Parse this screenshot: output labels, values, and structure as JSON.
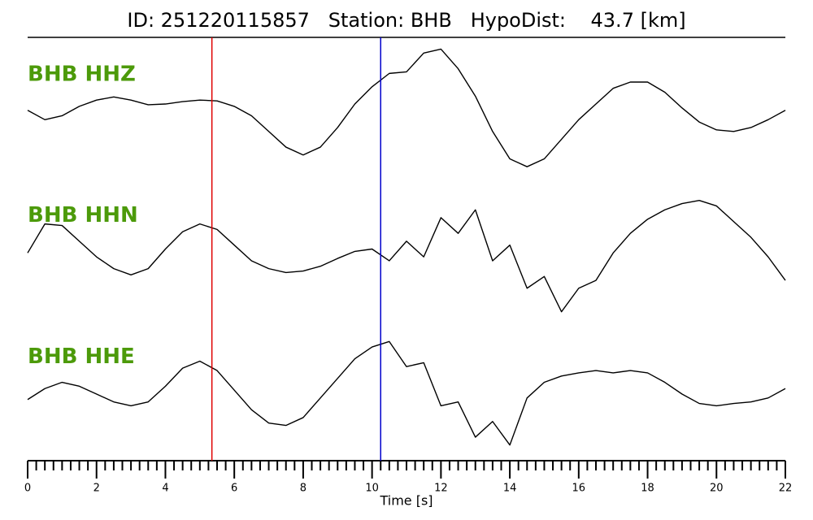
{
  "chart_data": {
    "type": "line",
    "title": "ID: 251220115857   Station: BHB   HypoDist:    43.7 [km]",
    "xlabel": "Time [s]",
    "xlim": [
      0,
      22
    ],
    "xticks": [
      0,
      2,
      4,
      6,
      8,
      10,
      12,
      14,
      16,
      18,
      20,
      22
    ],
    "xminorticks": [
      0.25,
      0.5,
      0.75,
      1,
      1.25,
      1.5,
      1.75,
      2.25,
      2.5,
      2.75,
      3,
      3.25,
      3.5,
      3.75,
      4.25,
      4.5,
      4.75,
      5,
      5.25,
      5.5,
      5.75,
      6.25,
      6.5,
      6.75,
      7,
      7.25,
      7.5,
      7.75,
      8.25,
      8.5,
      8.75,
      9,
      9.25,
      9.5,
      9.75,
      10.25,
      10.5,
      10.75,
      11,
      11.25,
      11.5,
      11.75,
      12.25,
      12.5,
      12.75,
      13,
      13.25,
      13.5,
      13.75,
      14.25,
      14.5,
      14.75,
      15,
      15.25,
      15.5,
      15.75,
      16.25,
      16.5,
      16.75,
      17,
      17.25,
      17.5,
      17.75,
      18.25,
      18.5,
      18.75,
      19,
      19.25,
      19.5,
      19.75,
      20.25,
      20.5,
      20.75,
      21,
      21.25,
      21.5,
      21.75
    ],
    "ylim": [
      -90,
      90
    ],
    "label_color": "#4c9a0a",
    "x": [
      0,
      0.5,
      1,
      1.5,
      2,
      2.5,
      3,
      3.5,
      4,
      4.5,
      5,
      5.5,
      6,
      6.5,
      7,
      7.5,
      8,
      8.5,
      9,
      9.5,
      10,
      10.5,
      11,
      11.5,
      12,
      12.5,
      13,
      13.5,
      14,
      14.5,
      15,
      15.5,
      16,
      16.5,
      17,
      17.5,
      18,
      18.5,
      19,
      19.5,
      20,
      20.5,
      21,
      21.5,
      22
    ],
    "series": [
      {
        "name": "BHB HHZ",
        "color": "#000000",
        "values": [
          -3,
          -15,
          -10,
          2,
          10,
          14,
          10,
          4,
          5,
          8,
          10,
          9,
          2,
          -10,
          -30,
          -50,
          -60,
          -50,
          -25,
          5,
          27,
          44,
          46,
          70,
          75,
          50,
          15,
          -30,
          -65,
          -75,
          -65,
          -40,
          -15,
          5,
          25,
          33,
          33,
          20,
          0,
          -18,
          -28,
          -30,
          -25,
          -15,
          -3
        ]
      },
      {
        "name": "BHB HHN",
        "color": "#000000",
        "values": [
          -5,
          32,
          30,
          10,
          -10,
          -25,
          -33,
          -25,
          0,
          22,
          32,
          25,
          5,
          -15,
          -25,
          -30,
          -28,
          -22,
          -12,
          -3,
          0,
          -15,
          10,
          -10,
          40,
          20,
          50,
          -15,
          5,
          -50,
          -35,
          -80,
          -50,
          -40,
          -5,
          20,
          38,
          50,
          58,
          62,
          55,
          35,
          15,
          -10,
          -40
        ]
      },
      {
        "name": "BHB HHE",
        "color": "#000000",
        "values": [
          -12,
          2,
          10,
          5,
          -5,
          -15,
          -20,
          -15,
          5,
          28,
          37,
          25,
          0,
          -25,
          -42,
          -45,
          -35,
          -10,
          15,
          40,
          55,
          62,
          30,
          35,
          -20,
          -15,
          -60,
          -40,
          -70,
          -10,
          10,
          18,
          22,
          25,
          22,
          25,
          22,
          10,
          -5,
          -17,
          -20,
          -17,
          -15,
          -10,
          2
        ]
      }
    ],
    "markers": [
      {
        "x": 5.35,
        "color": "#e00000"
      },
      {
        "x": 10.25,
        "color": "#0000cc"
      }
    ]
  }
}
